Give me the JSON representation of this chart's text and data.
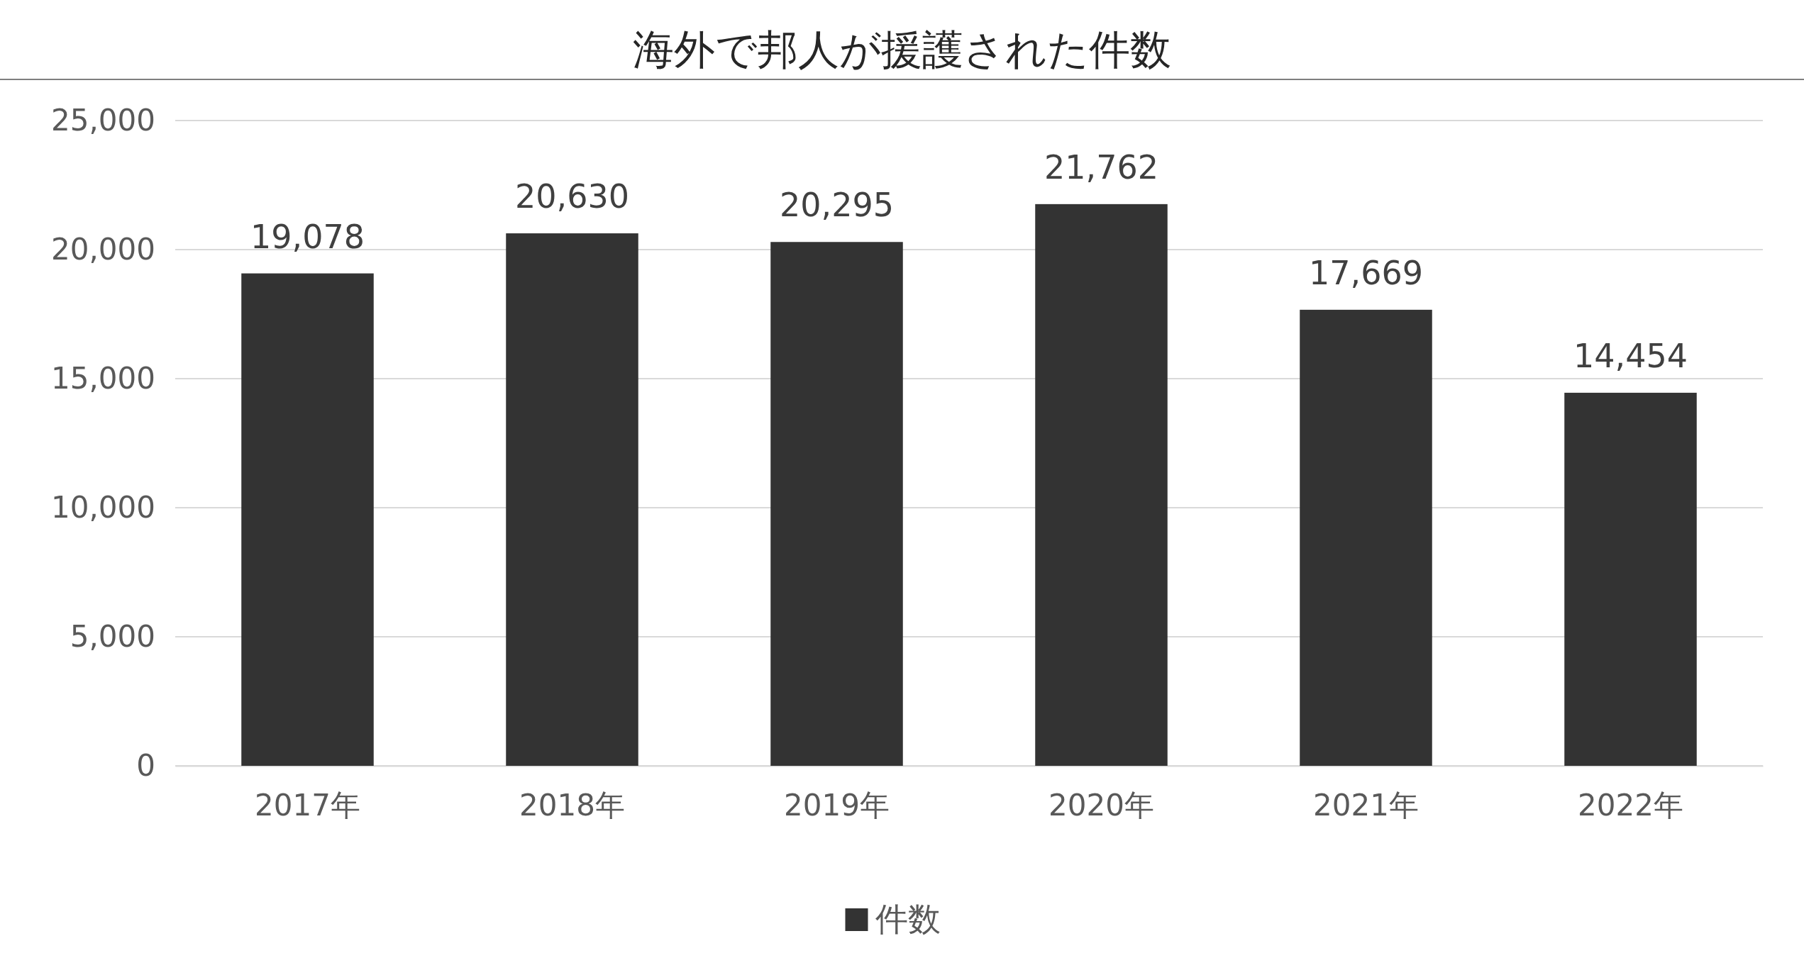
{
  "chart_data": {
    "type": "bar",
    "title": "海外で邦人が援護された件数",
    "categories": [
      "2017年",
      "2018年",
      "2019年",
      "2020年",
      "2021年",
      "2022年"
    ],
    "series": [
      {
        "name": "件数",
        "color": "#333333",
        "values": [
          19078,
          20630,
          20295,
          21762,
          17669,
          14454
        ],
        "value_labels": [
          "19,078",
          "20,630",
          "20,295",
          "21,762",
          "17,669",
          "14,454"
        ]
      }
    ],
    "ylim": [
      0,
      25000
    ],
    "yticks": [
      {
        "value": 0,
        "label": "0"
      },
      {
        "value": 5000,
        "label": "5,000"
      },
      {
        "value": 10000,
        "label": "10,000"
      },
      {
        "value": 15000,
        "label": "15,000"
      },
      {
        "value": 20000,
        "label": "20,000"
      },
      {
        "value": 25000,
        "label": "25,000"
      }
    ],
    "grid": "y",
    "legend": "bottom"
  }
}
